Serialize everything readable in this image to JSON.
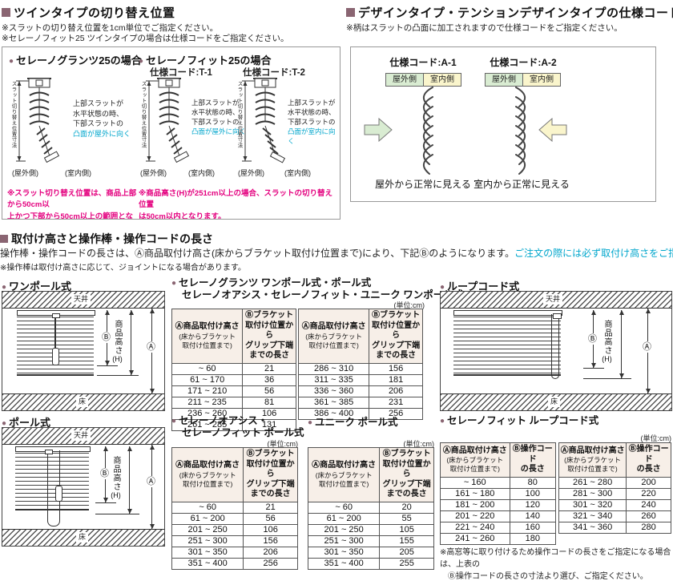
{
  "colors": {
    "accent": "#8a6572",
    "magenta": "#e4007f",
    "cyan": "#00a6cc",
    "table_header_bg": "#f7efe8",
    "outside_green": "#d9ecd2",
    "inside_yellow": "#faf5cc"
  },
  "twin": {
    "title": "ツインタイプの切り替え位置",
    "note1": "※スラットの切り替え位置を1cm単位でご指定ください。",
    "note2": "※セレーノフィット25 ツインタイプの場合は仕様コードをご指定ください。",
    "granz_title": "セレーノグランツ25の場合",
    "fit_title": "セレーノフィット25の場合",
    "code_t1": "仕様コード:T-1",
    "code_t2": "仕様コード:T-2",
    "dim_label": "スラット切り替え位置寸法",
    "desc_plain": "上部スラットが\n水平状態の時、\n下部スラットの",
    "desc_out": "凸面が屋外に向く",
    "desc_in": "凸面が室内に向く",
    "outside": "(屋外側)",
    "inside": "(室内側)",
    "granz_note": "※スラット切り替え位置は、商品上部から50cm以\n上かつ下部から50cm以上の範囲となります。",
    "fit_note": "※商品高さ(H)が251cm以上の場合、スラットの切り替え位置\nは50cm以内となります。"
  },
  "design": {
    "title": "デザインタイプ・テンションデザインタイプの仕様コード",
    "note": "※柄はスラットの凸面に加工されますので仕様コードをご指定ください。",
    "code_a1": "仕様コード:A-1",
    "code_a2": "仕様コード:A-2",
    "outside": "屋外側",
    "inside": "室内側",
    "caption_a1": "屋外から正常に見える",
    "caption_a2": "室内から正常に見える"
  },
  "height_section": {
    "title": "取付け高さと操作棒・操作コードの長さ",
    "body": "操作棒・操作コードの長さは、Ⓐ商品取付け高さ(床からブラケット取付け位置まで)により、下記Ⓑのようになります。",
    "body_em": "ご注文の際には必ず取付け高さをご指定ください。",
    "note": "※操作棒は取付け高さに応じて、ジョイントになる場合があります。"
  },
  "diagrams": {
    "one_pole_title": "ワンポール式",
    "loop_title": "ループコード式",
    "pole_title": "ポール式",
    "ceiling": "天井",
    "floor": "床",
    "mark_a": "Ⓐ",
    "mark_b": "Ⓑ",
    "height_label": "商品高さ",
    "height_label_h": "(H)"
  },
  "tables": {
    "unit": "(単位:cm)",
    "header_a_main": "Ⓐ商品取付け高さ",
    "header_a_sub": "(床からブラケット\n取付け位置まで)",
    "header_b_grip": "Ⓑブラケット\n取付け位置から\nグリップ下端\nまでの長さ",
    "header_b_cord": "Ⓑ操作コード\nの長さ",
    "granz": {
      "title1": "セレーノグランツ ワンポール式・ポール式",
      "title2": "セレーノオアシス・セレーノフィット・ユニーク ワンポール式",
      "left_rows": [
        [
          "~ 60",
          "21"
        ],
        [
          "61 ~ 170",
          "36"
        ],
        [
          "171 ~ 210",
          "56"
        ],
        [
          "211 ~ 235",
          "81"
        ],
        [
          "236 ~ 260",
          "106"
        ],
        [
          "261 ~ 285",
          "131"
        ]
      ],
      "right_rows": [
        [
          "286 ~ 310",
          "156"
        ],
        [
          "311 ~ 335",
          "181"
        ],
        [
          "336 ~ 360",
          "206"
        ],
        [
          "361 ~ 385",
          "231"
        ],
        [
          "386 ~ 400",
          "256"
        ]
      ]
    },
    "oasis": {
      "title1": "セレーノオアシス・",
      "title2": "セレーノフィット ポール式",
      "rows": [
        [
          "~ 60",
          "21"
        ],
        [
          "61 ~ 200",
          "56"
        ],
        [
          "201 ~ 250",
          "106"
        ],
        [
          "251 ~ 300",
          "156"
        ],
        [
          "301 ~ 350",
          "206"
        ],
        [
          "351 ~ 400",
          "256"
        ]
      ]
    },
    "unique": {
      "title": "ユニーク ポール式",
      "rows": [
        [
          "~ 60",
          "20"
        ],
        [
          "61 ~ 200",
          "55"
        ],
        [
          "201 ~ 250",
          "105"
        ],
        [
          "251 ~ 300",
          "155"
        ],
        [
          "301 ~ 350",
          "205"
        ],
        [
          "351 ~ 400",
          "255"
        ]
      ]
    },
    "fit_loop": {
      "title": "セレーノフィット ループコード式",
      "left_rows": [
        [
          "~ 160",
          "80"
        ],
        [
          "161 ~ 180",
          "100"
        ],
        [
          "181 ~ 200",
          "120"
        ],
        [
          "201 ~ 220",
          "140"
        ],
        [
          "221 ~ 240",
          "160"
        ],
        [
          "241 ~ 260",
          "180"
        ]
      ],
      "right_rows": [
        [
          "261 ~ 280",
          "200"
        ],
        [
          "281 ~ 300",
          "220"
        ],
        [
          "301 ~ 320",
          "240"
        ],
        [
          "321 ~ 340",
          "260"
        ],
        [
          "341 ~ 360",
          "280"
        ]
      ],
      "note": "※高窓等に取り付けるため操作コードの長さをご指定になる場合は、上表の\n　Ⓑ操作コードの長さの寸法より選び、ご指定ください。"
    }
  }
}
